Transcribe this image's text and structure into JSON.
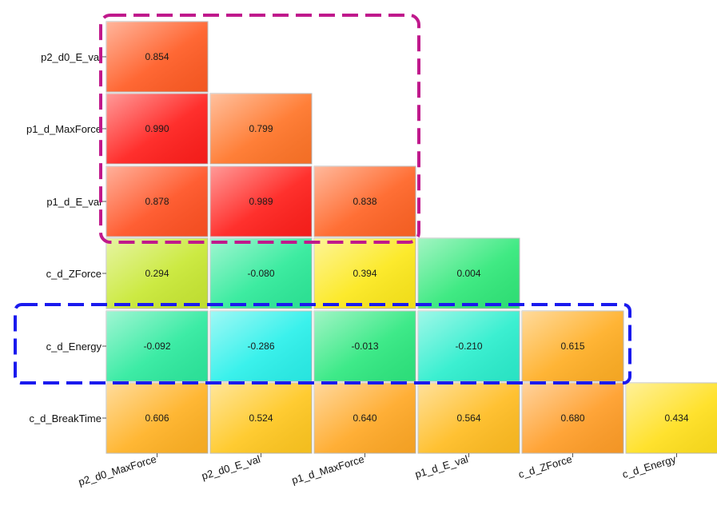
{
  "chart_data": {
    "type": "heatmap",
    "title": "",
    "row_labels": [
      "p2_d0_E_val",
      "p1_d_MaxForce",
      "p1_d_E_val",
      "c_d_ZForce",
      "c_d_Energy",
      "c_d_BreakTime"
    ],
    "column_labels": [
      "p2_d0_MaxForce",
      "p2_d0_E_val",
      "p1_d_MaxForce",
      "p1_d_E_val",
      "c_d_ZForce",
      "c_d_Energy"
    ],
    "values": [
      [
        0.854
      ],
      [
        0.99,
        0.799
      ],
      [
        0.878,
        0.989,
        0.838
      ],
      [
        0.294,
        -0.08,
        0.394,
        0.004
      ],
      [
        -0.092,
        -0.286,
        -0.013,
        -0.21,
        0.615
      ],
      [
        0.606,
        0.524,
        0.64,
        0.564,
        0.68,
        0.434
      ]
    ],
    "value_labels": [
      [
        "0.854"
      ],
      [
        "0.990",
        "0.799"
      ],
      [
        "0.878",
        "0.989",
        "0.838"
      ],
      [
        "0.294",
        "-0.080",
        "0.394",
        "0.004"
      ],
      [
        "-0.092",
        "-0.286",
        "-0.013",
        "-0.210",
        "0.615"
      ],
      [
        "0.606",
        "0.524",
        "0.640",
        "0.564",
        "0.680",
        "0.434"
      ]
    ],
    "layout": "lower-triangular",
    "colors": {
      "high": "#ff1a1a",
      "mid_high": "#ff8a2a",
      "mid": "#ffe81a",
      "low": "#2ee87a",
      "lowest": "#2af0f0"
    },
    "highlights": [
      {
        "style": "dashed",
        "color": "#c0198c",
        "covers_rows": [
          "p2_d0_E_val",
          "p1_d_MaxForce",
          "p1_d_E_val"
        ]
      },
      {
        "style": "dashed",
        "color": "#1a1aee",
        "covers_rows": [
          "c_d_Energy"
        ]
      }
    ]
  }
}
